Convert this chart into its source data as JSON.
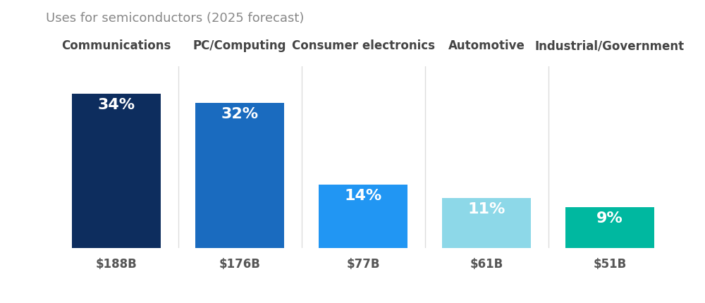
{
  "title": "Uses for semiconductors (2025 forecast)",
  "categories": [
    "Communications",
    "PC/Computing",
    "Consumer electronics",
    "Automotive",
    "Industrial/Government"
  ],
  "values": [
    34,
    32,
    14,
    11,
    9
  ],
  "dollar_labels": [
    "$188B",
    "$176B",
    "$77B",
    "$61B",
    "$51B"
  ],
  "pct_labels": [
    "34%",
    "32%",
    "14%",
    "11%",
    "9%"
  ],
  "bar_colors": [
    "#0d2d5e",
    "#1a6bbf",
    "#2196f3",
    "#8dd8e8",
    "#00b8a0"
  ],
  "background_color": "#ffffff",
  "title_color": "#888888",
  "category_label_color": "#444444",
  "dollar_label_color": "#555555",
  "pct_label_color": "#ffffff",
  "bar_width": 0.72,
  "ylim_max": 40,
  "title_fontsize": 13,
  "category_fontsize": 12,
  "pct_fontsize": 16,
  "dollar_fontsize": 12,
  "separator_color": "#dddddd"
}
